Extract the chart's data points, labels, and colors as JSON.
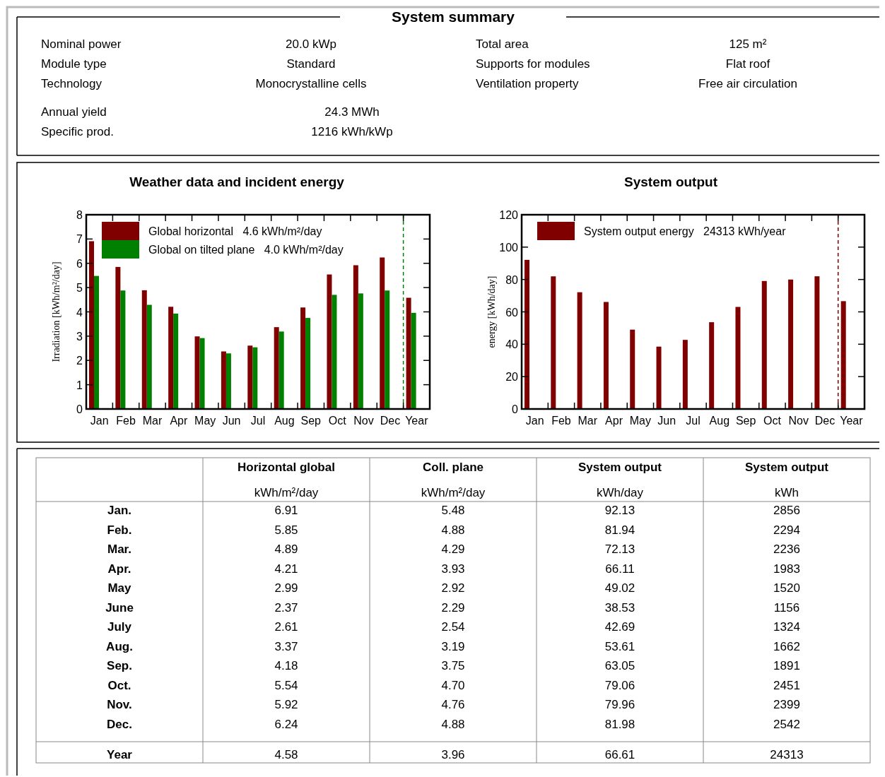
{
  "chart_data": [
    {
      "type": "other",
      "title": "System summary",
      "annotations": [
        "Nominal power",
        "20.0 kWp",
        "Total area",
        "125 m²",
        "Module type",
        "Standard",
        "Supports for modules",
        "Flat roof",
        "Technology",
        "Monocrystalline cells",
        "Ventilation property",
        "Free air circulation",
        "Annual yield",
        "24.3 MWh",
        "Specific prod.",
        "1216 kWh/kWp"
      ]
    },
    {
      "type": "bar",
      "title": "Weather data and incident energy",
      "ylabel": "Irradiation [kWh/m²/day]",
      "categories": [
        "Jan",
        "Feb",
        "Mar",
        "Apr",
        "May",
        "Jun",
        "Jul",
        "Aug",
        "Sep",
        "Oct",
        "Nov",
        "Dec",
        "Year"
      ],
      "series": [
        {
          "name": "Global horizontal   4.6 kWh/m²/day",
          "color": "#800000",
          "values": [
            6.91,
            5.85,
            4.89,
            4.21,
            2.99,
            2.37,
            2.61,
            3.37,
            4.18,
            5.54,
            5.92,
            6.24,
            4.58
          ]
        },
        {
          "name": "Global on tilted plane   4.0 kWh/m²/day",
          "color": "#008000",
          "values": [
            5.48,
            4.88,
            4.29,
            3.93,
            2.92,
            2.29,
            2.54,
            3.19,
            3.75,
            4.7,
            4.76,
            4.88,
            3.96
          ]
        }
      ],
      "ylim": [
        0,
        8
      ],
      "yticks": [
        0,
        1,
        2,
        3,
        4,
        5,
        6,
        7,
        8
      ],
      "legend": "top left",
      "ref_lines": [
        {
          "axis": "x",
          "value": "Year",
          "color": "#008000",
          "line_style": "dashed"
        }
      ]
    },
    {
      "type": "bar",
      "title": "System output",
      "ylabel": "energy [kWh/day]",
      "categories": [
        "Jan",
        "Feb",
        "Mar",
        "Apr",
        "May",
        "Jun",
        "Jul",
        "Aug",
        "Sep",
        "Oct",
        "Nov",
        "Dec",
        "Year"
      ],
      "series": [
        {
          "name": "System output energy   24313 kWh/year",
          "color": "#800000",
          "values": [
            92.13,
            81.94,
            72.13,
            66.11,
            49.02,
            38.53,
            42.69,
            53.61,
            63.05,
            79.06,
            79.96,
            81.98,
            66.61
          ]
        }
      ],
      "ylim": [
        0,
        120
      ],
      "yticks": [
        0,
        20,
        40,
        60,
        80,
        100,
        120
      ],
      "legend": "top left",
      "ref_lines": [
        {
          "axis": "x",
          "value": "Year",
          "color": "#800000",
          "line_style": "dashed"
        }
      ]
    },
    {
      "type": "other",
      "categories": [
        "Horizontal global",
        "Coll. plane",
        "System output",
        "System output"
      ],
      "annotations": [
        "kWh/m²/day",
        "kWh/m²/day",
        "kWh/day",
        "kWh"
      ],
      "y_categories": [
        "Jan.",
        "Feb.",
        "Mar.",
        "Apr.",
        "May",
        "June",
        "July",
        "Aug.",
        "Sep.",
        "Oct.",
        "Nov.",
        "Dec.",
        "Year"
      ],
      "cell_labels": [
        [
          "6.91",
          "5.48",
          "92.13",
          "2856"
        ],
        [
          "5.85",
          "4.88",
          "81.94",
          "2294"
        ],
        [
          "4.89",
          "4.29",
          "72.13",
          "2236"
        ],
        [
          "4.21",
          "3.93",
          "66.11",
          "1983"
        ],
        [
          "2.99",
          "2.92",
          "49.02",
          "1520"
        ],
        [
          "2.37",
          "2.29",
          "38.53",
          "1156"
        ],
        [
          "2.61",
          "2.54",
          "42.69",
          "1324"
        ],
        [
          "3.37",
          "3.19",
          "53.61",
          "1662"
        ],
        [
          "4.18",
          "3.75",
          "63.05",
          "1891"
        ],
        [
          "5.54",
          "4.70",
          "79.06",
          "2451"
        ],
        [
          "5.92",
          "4.76",
          "79.96",
          "2399"
        ],
        [
          "6.24",
          "4.88",
          "81.98",
          "2542"
        ],
        [
          "4.58",
          "3.96",
          "66.61",
          "24313"
        ]
      ]
    }
  ]
}
